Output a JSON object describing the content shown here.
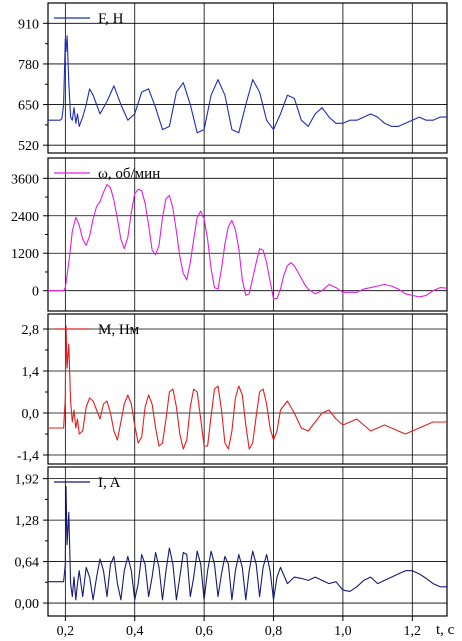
{
  "x_axis": {
    "label": "t, c",
    "range": [
      0.15,
      1.3
    ],
    "ticks": [
      0.2,
      0.4,
      0.6,
      0.8,
      1.0,
      1.2
    ],
    "tick_labels": [
      "0,2",
      "0,4",
      "0,6",
      "0,8",
      "1,0",
      "1,2"
    ]
  },
  "chart_data": [
    {
      "type": "line",
      "legend": "F, Н",
      "color": "#1f2db5",
      "ylim": [
        495,
        975
      ],
      "yticks": [
        520,
        650,
        780,
        910
      ],
      "ytick_labels": [
        "520",
        "650",
        "780",
        "910"
      ],
      "x": [
        0.15,
        0.18,
        0.185,
        0.19,
        0.195,
        0.2,
        0.202,
        0.205,
        0.21,
        0.215,
        0.22,
        0.225,
        0.23,
        0.235,
        0.24,
        0.25,
        0.26,
        0.27,
        0.28,
        0.29,
        0.3,
        0.32,
        0.34,
        0.36,
        0.38,
        0.4,
        0.42,
        0.44,
        0.46,
        0.48,
        0.5,
        0.52,
        0.54,
        0.56,
        0.58,
        0.6,
        0.62,
        0.64,
        0.66,
        0.68,
        0.7,
        0.72,
        0.74,
        0.76,
        0.78,
        0.8,
        0.82,
        0.84,
        0.86,
        0.88,
        0.9,
        0.92,
        0.94,
        0.96,
        0.98,
        1.0,
        1.02,
        1.04,
        1.06,
        1.08,
        1.1,
        1.12,
        1.14,
        1.16,
        1.18,
        1.2,
        1.22,
        1.24,
        1.26,
        1.28,
        1.3
      ],
      "y": [
        600,
        600,
        600,
        605,
        650,
        860,
        820,
        870,
        720,
        610,
        600,
        640,
        590,
        620,
        580,
        610,
        650,
        700,
        680,
        650,
        620,
        660,
        710,
        650,
        600,
        620,
        690,
        700,
        640,
        570,
        580,
        690,
        720,
        650,
        560,
        570,
        680,
        730,
        680,
        570,
        560,
        650,
        730,
        690,
        600,
        570,
        620,
        680,
        670,
        600,
        580,
        620,
        640,
        610,
        590,
        590,
        600,
        600,
        610,
        620,
        610,
        590,
        580,
        580,
        590,
        600,
        610,
        600,
        600,
        610,
        610
      ]
    },
    {
      "type": "line",
      "legend": "ω, об/мин",
      "color": "#e020e0",
      "ylim": [
        -650,
        4250
      ],
      "yticks": [
        0,
        1200,
        2400,
        3600
      ],
      "ytick_labels": [
        "0",
        "1200",
        "2400",
        "3600"
      ],
      "x": [
        0.15,
        0.19,
        0.195,
        0.2,
        0.205,
        0.21,
        0.215,
        0.22,
        0.23,
        0.24,
        0.25,
        0.26,
        0.27,
        0.28,
        0.29,
        0.3,
        0.31,
        0.32,
        0.33,
        0.34,
        0.35,
        0.36,
        0.37,
        0.38,
        0.39,
        0.4,
        0.41,
        0.42,
        0.43,
        0.44,
        0.45,
        0.46,
        0.47,
        0.48,
        0.49,
        0.5,
        0.51,
        0.52,
        0.53,
        0.54,
        0.55,
        0.56,
        0.57,
        0.58,
        0.59,
        0.6,
        0.61,
        0.62,
        0.63,
        0.64,
        0.65,
        0.66,
        0.67,
        0.68,
        0.69,
        0.7,
        0.71,
        0.72,
        0.73,
        0.74,
        0.75,
        0.76,
        0.77,
        0.78,
        0.79,
        0.8,
        0.81,
        0.82,
        0.83,
        0.84,
        0.85,
        0.86,
        0.87,
        0.88,
        0.89,
        0.9,
        0.92,
        0.94,
        0.96,
        0.98,
        1.0,
        1.02,
        1.04,
        1.06,
        1.08,
        1.1,
        1.12,
        1.14,
        1.16,
        1.18,
        1.2,
        1.22,
        1.24,
        1.26,
        1.28,
        1.3
      ],
      "y": [
        0,
        0,
        0,
        100,
        500,
        900,
        1400,
        1900,
        2350,
        2100,
        1650,
        1450,
        1750,
        2300,
        2700,
        2850,
        3150,
        3400,
        3300,
        2900,
        2300,
        1650,
        1350,
        1700,
        2500,
        3100,
        3250,
        3200,
        2800,
        2100,
        1300,
        1150,
        1450,
        2350,
        2950,
        3050,
        2650,
        1900,
        1100,
        550,
        350,
        900,
        1650,
        2350,
        2550,
        2300,
        1650,
        700,
        100,
        50,
        700,
        1500,
        2050,
        2250,
        1950,
        1350,
        350,
        -150,
        -100,
        400,
        900,
        1350,
        1300,
        900,
        300,
        -250,
        -250,
        50,
        500,
        800,
        900,
        800,
        600,
        400,
        200,
        50,
        -100,
        0,
        200,
        100,
        -50,
        -50,
        -50,
        50,
        100,
        150,
        200,
        150,
        50,
        -100,
        -150,
        -200,
        -150,
        0,
        100,
        80
      ]
    },
    {
      "type": "line",
      "legend": "M, Нм",
      "color": "#e02020",
      "ylim": [
        -1.7,
        3.3
      ],
      "yticks": [
        -1.4,
        0.0,
        1.4,
        2.8
      ],
      "ytick_labels": [
        "-1,4",
        "0,0",
        "1,4",
        "2,8"
      ],
      "x": [
        0.15,
        0.19,
        0.195,
        0.2,
        0.202,
        0.205,
        0.21,
        0.215,
        0.22,
        0.225,
        0.23,
        0.235,
        0.24,
        0.25,
        0.26,
        0.27,
        0.28,
        0.29,
        0.3,
        0.31,
        0.32,
        0.33,
        0.34,
        0.35,
        0.36,
        0.37,
        0.38,
        0.39,
        0.4,
        0.41,
        0.42,
        0.43,
        0.44,
        0.45,
        0.46,
        0.47,
        0.48,
        0.49,
        0.5,
        0.51,
        0.52,
        0.53,
        0.54,
        0.55,
        0.56,
        0.57,
        0.58,
        0.59,
        0.6,
        0.61,
        0.62,
        0.63,
        0.64,
        0.65,
        0.66,
        0.67,
        0.68,
        0.69,
        0.7,
        0.71,
        0.72,
        0.73,
        0.74,
        0.75,
        0.76,
        0.77,
        0.78,
        0.79,
        0.8,
        0.81,
        0.82,
        0.84,
        0.86,
        0.88,
        0.9,
        0.92,
        0.94,
        0.96,
        0.98,
        1.0,
        1.02,
        1.04,
        1.06,
        1.08,
        1.1,
        1.12,
        1.14,
        1.16,
        1.18,
        1.2,
        1.22,
        1.24,
        1.26,
        1.28,
        1.3
      ],
      "y": [
        -0.5,
        -0.5,
        -0.5,
        0.5,
        2.9,
        1.5,
        2.3,
        0.4,
        -0.3,
        0.1,
        -0.5,
        -0.2,
        -0.7,
        -0.6,
        0.2,
        0.5,
        0.4,
        0.1,
        -0.2,
        0.3,
        0.4,
        0.0,
        -0.6,
        -0.9,
        -0.3,
        0.3,
        0.6,
        0.3,
        -0.4,
        -1.0,
        -0.8,
        0.2,
        0.6,
        0.3,
        -0.5,
        -1.1,
        -1.0,
        -0.2,
        0.7,
        0.8,
        0.2,
        -0.7,
        -1.2,
        -0.9,
        0.2,
        0.8,
        0.7,
        -0.2,
        -1.1,
        -1.1,
        -0.1,
        0.8,
        0.9,
        0.1,
        -1.0,
        -1.2,
        -0.6,
        0.5,
        0.9,
        0.6,
        -0.4,
        -1.2,
        -1.0,
        -0.1,
        0.7,
        0.8,
        0.3,
        -0.5,
        -0.9,
        -0.6,
        0.1,
        0.4,
        0.0,
        -0.5,
        -0.6,
        -0.3,
        0.0,
        0.1,
        -0.2,
        -0.4,
        -0.3,
        -0.2,
        -0.4,
        -0.6,
        -0.5,
        -0.4,
        -0.5,
        -0.6,
        -0.7,
        -0.6,
        -0.5,
        -0.4,
        -0.3,
        -0.3,
        -0.3
      ]
    },
    {
      "type": "line",
      "legend": "I, A",
      "color": "#1a1a70",
      "ylim": [
        -0.2,
        2.1
      ],
      "yticks": [
        0.0,
        0.64,
        1.28,
        1.92
      ],
      "ytick_labels": [
        "0,00",
        "0,64",
        "1,28",
        "1,92"
      ],
      "x": [
        0.15,
        0.19,
        0.195,
        0.2,
        0.202,
        0.205,
        0.21,
        0.215,
        0.22,
        0.225,
        0.23,
        0.235,
        0.24,
        0.25,
        0.26,
        0.27,
        0.28,
        0.29,
        0.3,
        0.31,
        0.32,
        0.33,
        0.34,
        0.35,
        0.36,
        0.37,
        0.38,
        0.39,
        0.4,
        0.41,
        0.42,
        0.43,
        0.44,
        0.45,
        0.46,
        0.47,
        0.48,
        0.49,
        0.5,
        0.51,
        0.52,
        0.53,
        0.54,
        0.55,
        0.56,
        0.57,
        0.58,
        0.59,
        0.6,
        0.61,
        0.62,
        0.63,
        0.64,
        0.65,
        0.66,
        0.67,
        0.68,
        0.69,
        0.7,
        0.71,
        0.72,
        0.73,
        0.74,
        0.75,
        0.76,
        0.77,
        0.78,
        0.79,
        0.8,
        0.81,
        0.82,
        0.84,
        0.86,
        0.88,
        0.9,
        0.92,
        0.94,
        0.96,
        0.98,
        1.0,
        1.02,
        1.04,
        1.06,
        1.08,
        1.1,
        1.12,
        1.14,
        1.16,
        1.18,
        1.2,
        1.22,
        1.24,
        1.26,
        1.28,
        1.3
      ],
      "y": [
        0.33,
        0.33,
        0.33,
        0.6,
        1.8,
        0.9,
        1.4,
        0.3,
        0.1,
        0.4,
        0.05,
        0.3,
        0.5,
        0.1,
        0.55,
        0.4,
        0.05,
        0.4,
        0.68,
        0.5,
        0.1,
        0.6,
        0.72,
        0.3,
        0.05,
        0.5,
        0.72,
        0.5,
        0.05,
        0.3,
        0.75,
        0.6,
        0.1,
        0.4,
        0.78,
        0.55,
        0.05,
        0.5,
        0.85,
        0.6,
        0.05,
        0.4,
        0.78,
        0.75,
        0.1,
        0.4,
        0.8,
        0.6,
        0.05,
        0.5,
        0.8,
        0.6,
        0.1,
        0.45,
        0.72,
        0.6,
        0.05,
        0.5,
        0.75,
        0.55,
        0.05,
        0.5,
        0.8,
        0.6,
        0.1,
        0.55,
        0.75,
        0.5,
        0.05,
        0.4,
        0.55,
        0.3,
        0.4,
        0.38,
        0.35,
        0.4,
        0.35,
        0.3,
        0.33,
        0.2,
        0.18,
        0.25,
        0.35,
        0.4,
        0.3,
        0.35,
        0.4,
        0.45,
        0.5,
        0.5,
        0.45,
        0.38,
        0.3,
        0.25,
        0.25
      ]
    }
  ]
}
